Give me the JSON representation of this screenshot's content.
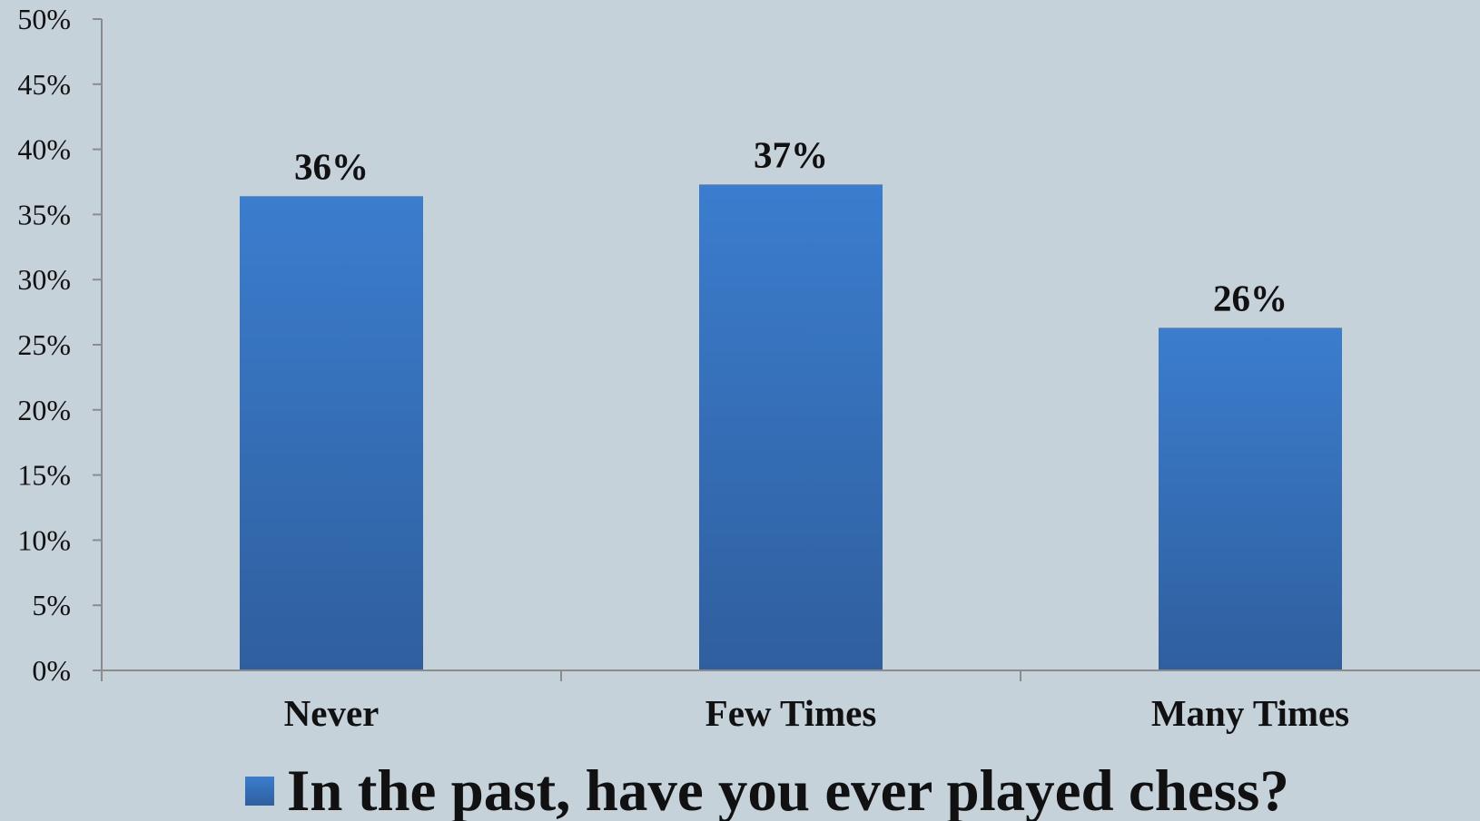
{
  "chart_data": {
    "type": "bar",
    "categories": [
      "Never",
      "Few Times",
      "Many Times"
    ],
    "series": [
      {
        "name": "In the past, have you ever played chess?",
        "values": [
          36.4,
          37.3,
          26.3
        ],
        "data_labels": [
          "36%",
          "37%",
          "26%"
        ],
        "color": "#3a78c7"
      }
    ],
    "ylim": [
      0,
      50
    ],
    "y_ticks": [
      0,
      5,
      10,
      15,
      20,
      25,
      30,
      35,
      40,
      45,
      50
    ],
    "y_tick_labels": [
      "0%",
      "5%",
      "10%",
      "15%",
      "20%",
      "25%",
      "30%",
      "35%",
      "40%",
      "45%",
      "50%"
    ],
    "grid": false,
    "legend_position": "bottom",
    "background": "#c6d2d9",
    "axis_color": "#8c8c8c"
  }
}
